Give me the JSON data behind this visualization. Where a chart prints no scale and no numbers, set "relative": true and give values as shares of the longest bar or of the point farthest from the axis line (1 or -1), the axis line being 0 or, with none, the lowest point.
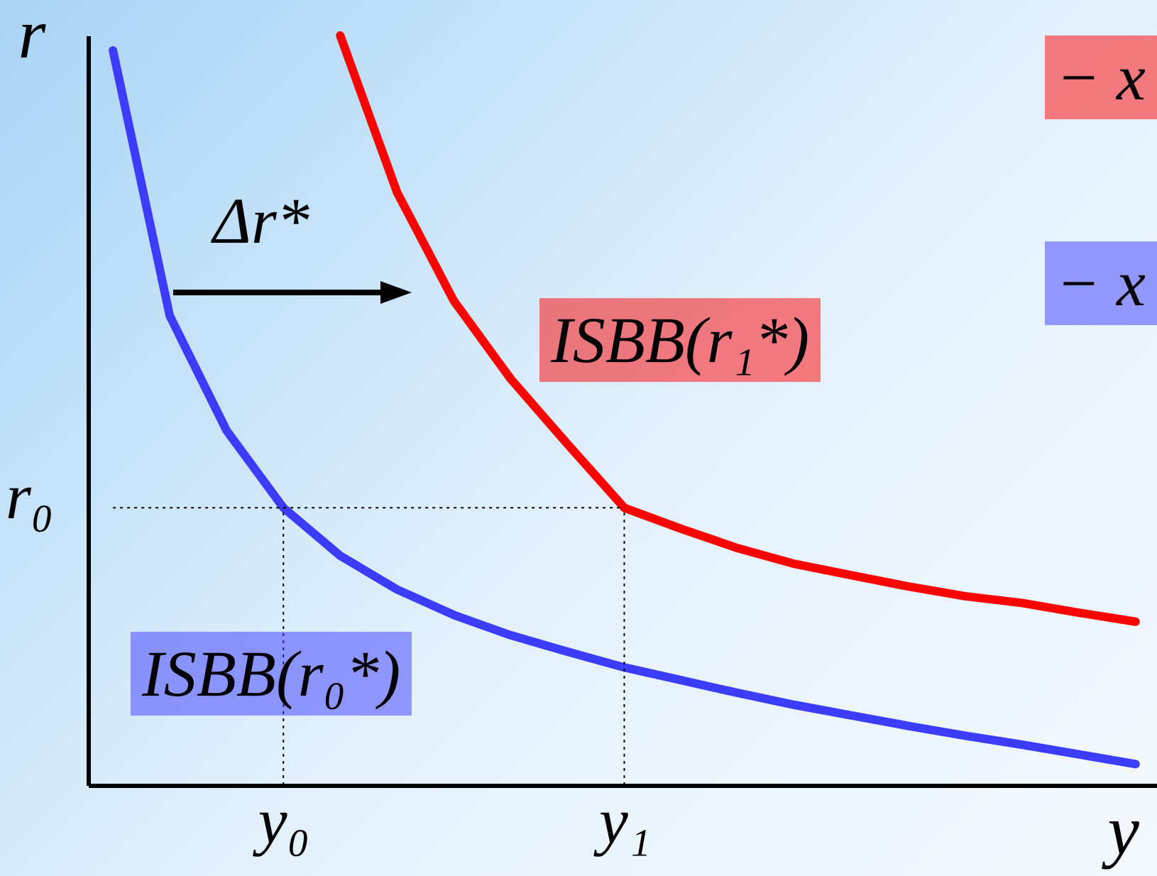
{
  "chart_data": {
    "type": "line",
    "relative": true,
    "xlabel": "y",
    "ylabel": "r",
    "categories": [
      null,
      null,
      null,
      "y₀",
      null,
      null,
      null,
      null,
      null,
      "y₁",
      null,
      null,
      null,
      null,
      null,
      null,
      null,
      null,
      null
    ],
    "series": [
      {
        "name": "ISBB(r₀*)",
        "color": "#3c3cff",
        "values": [
          0.98,
          0.626,
          0.473,
          0.37,
          0.306,
          0.261,
          0.227,
          0.2,
          0.178,
          0.157,
          0.14,
          0.123,
          0.107,
          0.093,
          0.079,
          0.066,
          0.054,
          0.041,
          0.028
        ]
      },
      {
        "name": "ISBB(r₁*)",
        "color": "#ff0000",
        "values": [
          null,
          null,
          null,
          null,
          1,
          0.791,
          0.646,
          0.542,
          0.455,
          0.37,
          0.342,
          0.316,
          0.295,
          0.28,
          0.265,
          0.252,
          0.243,
          0.23,
          0.218
        ]
      }
    ],
    "ref_lines": [
      {
        "axis": "y",
        "value": 0.37,
        "label": "r₀",
        "line_style": "dotted"
      },
      {
        "axis": "x",
        "value": "y₀",
        "label": null,
        "line_style": "dotted"
      },
      {
        "axis": "x",
        "value": "y₁",
        "label": null,
        "line_style": "dotted"
      }
    ],
    "annotations": [
      "Δr*",
      "− x",
      "− x"
    ],
    "grid": false,
    "line_style": "solid",
    "marker": "none"
  }
}
